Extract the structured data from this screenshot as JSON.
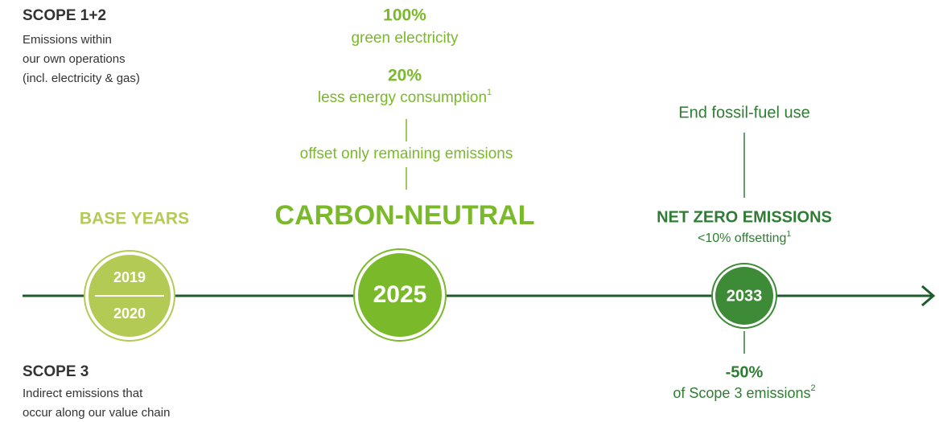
{
  "scope12": {
    "title": "SCOPE 1+2",
    "lines": [
      "Emissions within",
      "our own operations",
      "(incl. electricity & gas)"
    ]
  },
  "scope3": {
    "title": "SCOPE 3",
    "lines": [
      "Indirect emissions that",
      "occur along our value chain"
    ]
  },
  "base": {
    "label": "BASE YEARS",
    "years": [
      "2019",
      "2020"
    ]
  },
  "neutral": {
    "green_pct": "100%",
    "green_text": "green electricity",
    "energy_pct": "20%",
    "energy_text": "less energy consumption",
    "energy_note": "1",
    "offset_text": "offset only remaining emissions",
    "label": "CARBON-NEUTRAL",
    "year": "2025"
  },
  "netzero": {
    "fossil_text": "End fossil-fuel use",
    "label": "NET ZERO EMISSIONS",
    "offset_text": "<10% offsetting",
    "offset_note": "1",
    "year": "2033",
    "scope3_pct": "-50%",
    "scope3_text": "of Scope 3 emissions",
    "scope3_note": "2"
  }
}
